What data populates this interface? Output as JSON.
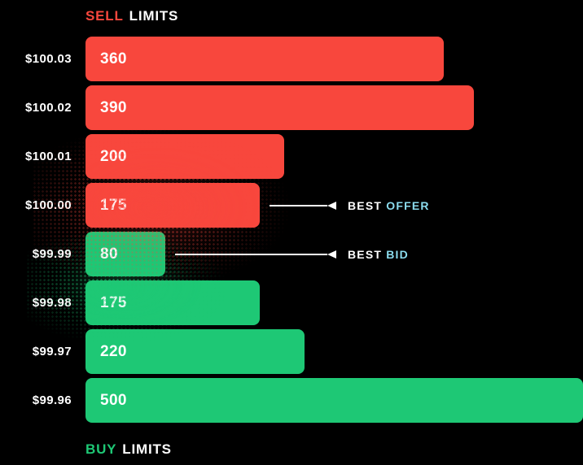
{
  "titles": {
    "sell_accent": "SELL",
    "sell_rest": "LIMITS",
    "buy_accent": "BUY",
    "buy_rest": "LIMITS"
  },
  "colors": {
    "background": "#000000",
    "sell": "#F8473D",
    "buy": "#1EC875",
    "text": "#FFFFFF",
    "annotation_accent": "#8BDCEE"
  },
  "chart_data": {
    "type": "bar",
    "orientation": "horizontal",
    "title": "Order book: sell limits vs buy limits",
    "categories": [
      "$100.03",
      "$100.02",
      "$100.01",
      "$100.00",
      "$99.99",
      "$99.98",
      "$99.97",
      "$99.96"
    ],
    "values": [
      360,
      390,
      200,
      175,
      80,
      175,
      220,
      500
    ],
    "sides": [
      "sell",
      "sell",
      "sell",
      "sell",
      "buy",
      "buy",
      "buy",
      "buy"
    ],
    "series": [
      {
        "name": "Sell limits",
        "color": "#F8473D",
        "categories": [
          "$100.03",
          "$100.02",
          "$100.01",
          "$100.00"
        ],
        "values": [
          360,
          390,
          200,
          175
        ]
      },
      {
        "name": "Buy limits",
        "color": "#1EC875",
        "categories": [
          "$99.99",
          "$99.98",
          "$99.97",
          "$99.96"
        ],
        "values": [
          80,
          175,
          220,
          500
        ]
      }
    ],
    "xmax": 500,
    "grid": false,
    "legend": false,
    "annotations": [
      {
        "category": "$100.00",
        "text_plain": "BEST",
        "text_accent": "OFFER"
      },
      {
        "category": "$99.99",
        "text_plain": "BEST",
        "text_accent": "BID"
      }
    ]
  }
}
